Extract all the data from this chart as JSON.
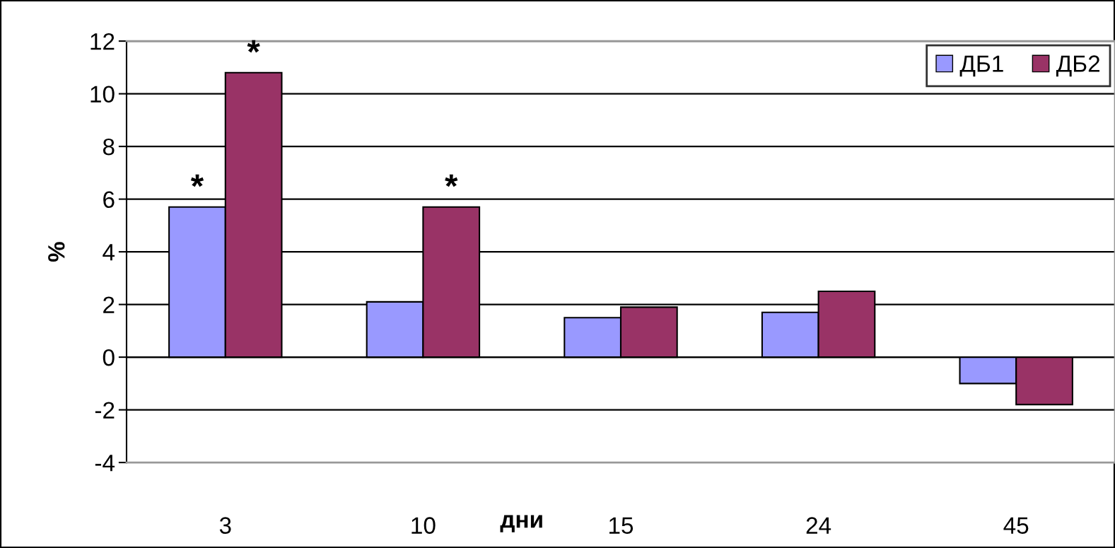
{
  "chart_data": {
    "type": "bar",
    "xlabel": "дни",
    "ylabel": "%",
    "categories": [
      "3",
      "10",
      "15",
      "24",
      "45"
    ],
    "series": [
      {
        "name": "ДБ1",
        "color": "#9999ff",
        "values": [
          5.7,
          2.1,
          1.5,
          1.7,
          -1.0
        ]
      },
      {
        "name": "ДБ2",
        "color": "#993366",
        "values": [
          10.8,
          5.7,
          1.9,
          2.5,
          -1.8
        ]
      }
    ],
    "ylim": [
      -4,
      12
    ],
    "yticks": [
      -4,
      -2,
      0,
      2,
      4,
      6,
      8,
      10,
      12
    ],
    "grid": "y",
    "legend": "top right",
    "annotations": [
      {
        "text": "*",
        "x": "3",
        "y": 5.7
      },
      {
        "text": "*",
        "x": "3",
        "y": 10.8
      },
      {
        "text": "*",
        "x": "10",
        "y": 5.7
      }
    ]
  }
}
